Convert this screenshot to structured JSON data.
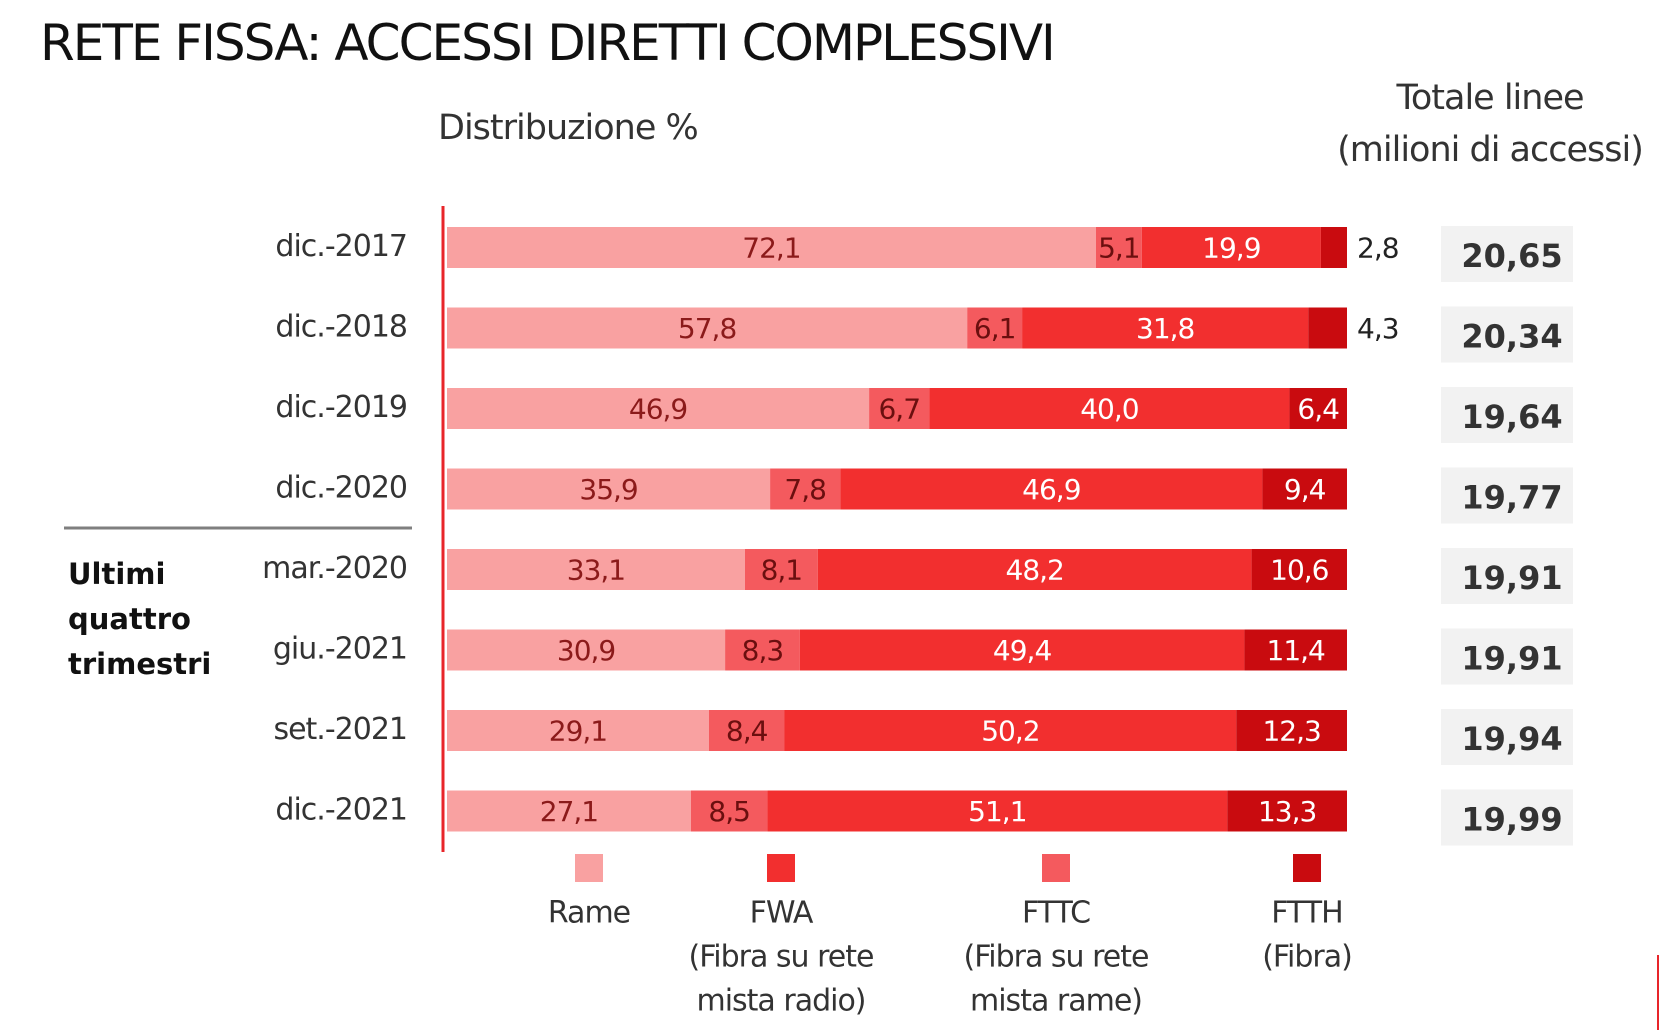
{
  "title": "RETE FISSA: ACCESSI DIRETTI COMPLESSIVI",
  "subtitle": "Distribuzione %",
  "totals_header": {
    "line1": "Totale linee",
    "line2": "(milioni di accessi)"
  },
  "group_label": {
    "line1": "Ultimi",
    "line2": "quattro",
    "line3": "trimestri"
  },
  "chart_data": {
    "type": "bar",
    "orientation": "horizontal",
    "stacked": true,
    "title": "Distribuzione %",
    "xlim": [
      0,
      100
    ],
    "grid": false,
    "legend_position": "bottom",
    "categories": [
      "dic.-2017",
      "dic.-2018",
      "dic.-2019",
      "dic.-2020",
      "mar.-2020",
      "giu.-2021",
      "set.-2021",
      "dic.-2021"
    ],
    "series": [
      {
        "name": "Rame",
        "color": "#f9a1a1",
        "text_color": "#8b1a1a",
        "values": [
          72.1,
          57.8,
          46.9,
          35.9,
          33.1,
          30.9,
          29.1,
          27.1
        ],
        "labels": [
          "72,1",
          "57,8",
          "46,9",
          "35,9",
          "33,1",
          "30,9",
          "29,1",
          "27,1"
        ]
      },
      {
        "name": "FTTC",
        "color": "#f45a5e",
        "text_color": "#6b0f0f",
        "values": [
          5.1,
          6.1,
          6.7,
          7.8,
          8.1,
          8.3,
          8.4,
          8.5
        ],
        "labels": [
          "5,1",
          "6,1",
          "6,7",
          "7,8",
          "8,1",
          "8,3",
          "8,4",
          "8,5"
        ]
      },
      {
        "name": "FWA",
        "color": "#f22f2f",
        "text_color": "#ffffff",
        "values": [
          19.9,
          31.8,
          40.0,
          46.9,
          48.2,
          49.4,
          50.2,
          51.1
        ],
        "labels": [
          "19,9",
          "31,8",
          "40,0",
          "46,9",
          "48,2",
          "49,4",
          "50,2",
          "51,1"
        ]
      },
      {
        "name": "FTTH",
        "color": "#c90b0f",
        "text_color": "#ffffff",
        "values": [
          2.8,
          4.3,
          6.4,
          9.4,
          10.6,
          11.4,
          12.3,
          13.3
        ],
        "labels": [
          "2,8",
          "4,3",
          "6,4",
          "9,4",
          "10,6",
          "11,4",
          "12,3",
          "13,3"
        ]
      }
    ],
    "totals": {
      "values": [
        20.65,
        20.34,
        19.64,
        19.77,
        19.91,
        19.91,
        19.94,
        19.99
      ],
      "labels": [
        "20,65",
        "20,34",
        "19,64",
        "19,77",
        "19,91",
        "19,91",
        "19,94",
        "19,99"
      ]
    },
    "legend": [
      {
        "lines": [
          "Rame"
        ],
        "color": "#f9a1a1"
      },
      {
        "lines": [
          "FWA",
          "(Fibra su rete",
          "mista radio)"
        ],
        "color": "#f22f2f"
      },
      {
        "lines": [
          "FTTC",
          "(Fibra su rete",
          "mista rame)"
        ],
        "color": "#f45a5e"
      },
      {
        "lines": [
          "FTTH",
          "(Fibra)"
        ],
        "color": "#c90b0f"
      }
    ],
    "colors": {
      "axis": "#e8252a",
      "divider": "#7f7f7f",
      "total_box": "#f2f2f2"
    }
  }
}
